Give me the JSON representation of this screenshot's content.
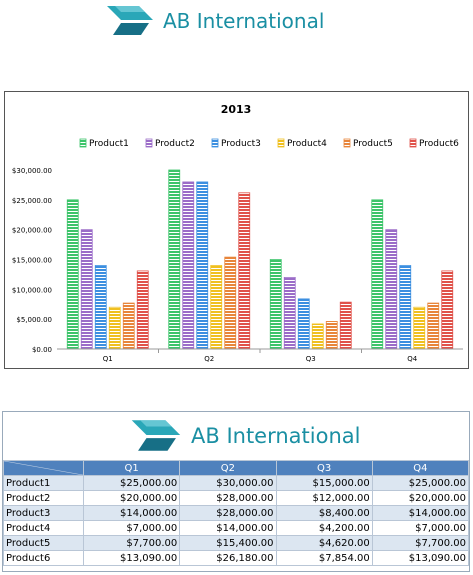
{
  "brand": {
    "name": "AB International",
    "color": "#1a8fa3",
    "icon": "ab-logo-icon"
  },
  "chart_data": {
    "type": "bar",
    "title": "2013",
    "categories": [
      "Q1",
      "Q2",
      "Q3",
      "Q4"
    ],
    "y_ticks": [
      "$0.00",
      "$5,000.00",
      "$10,000.00",
      "$15,000.00",
      "$20,000.00",
      "$25,000.00",
      "$30,000.00"
    ],
    "ylim": [
      0,
      30000
    ],
    "legend_position": "top",
    "grid": false,
    "series": [
      {
        "name": "Product1",
        "values": [
          25000,
          30000,
          15000,
          25000
        ],
        "color": "#3cc46a"
      },
      {
        "name": "Product2",
        "values": [
          20000,
          28000,
          12000,
          20000
        ],
        "color": "#9b6cc8"
      },
      {
        "name": "Product3",
        "values": [
          14000,
          28000,
          8400,
          14000
        ],
        "color": "#3c8fe0"
      },
      {
        "name": "Product4",
        "values": [
          7000,
          14000,
          4200,
          7000
        ],
        "color": "#f0c020"
      },
      {
        "name": "Product5",
        "values": [
          7700,
          15400,
          4620,
          7700
        ],
        "color": "#e8853a"
      },
      {
        "name": "Product6",
        "values": [
          13090,
          26180,
          7854,
          13090
        ],
        "color": "#e0524a"
      }
    ]
  },
  "table": {
    "corner": "",
    "headers": [
      "Q1",
      "Q2",
      "Q3",
      "Q4"
    ],
    "rows": [
      {
        "label": "Product1",
        "cells": [
          "$25,000.00",
          "$30,000.00",
          "$15,000.00",
          "$25,000.00"
        ]
      },
      {
        "label": "Product2",
        "cells": [
          "$20,000.00",
          "$28,000.00",
          "$12,000.00",
          "$20,000.00"
        ]
      },
      {
        "label": "Product3",
        "cells": [
          "$14,000.00",
          "$28,000.00",
          "$8,400.00",
          "$14,000.00"
        ]
      },
      {
        "label": "Product4",
        "cells": [
          "$7,000.00",
          "$14,000.00",
          "$4,200.00",
          "$7,000.00"
        ]
      },
      {
        "label": "Product5",
        "cells": [
          "$7,700.00",
          "$15,400.00",
          "$4,620.00",
          "$7,700.00"
        ]
      },
      {
        "label": "Product6",
        "cells": [
          "$13,090.00",
          "$26,180.00",
          "$7,854.00",
          "$13,090.00"
        ]
      }
    ]
  }
}
